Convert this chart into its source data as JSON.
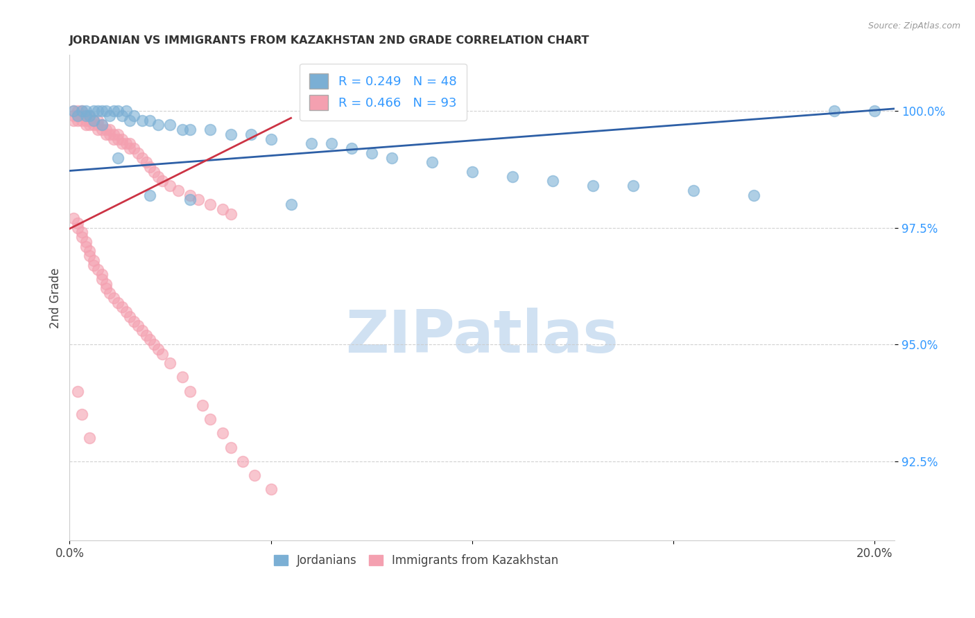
{
  "title": "JORDANIAN VS IMMIGRANTS FROM KAZAKHSTAN 2ND GRADE CORRELATION CHART",
  "source": "Source: ZipAtlas.com",
  "ylabel": "2nd Grade",
  "xlim": [
    0.0,
    0.205
  ],
  "ylim": [
    0.908,
    1.012
  ],
  "yticks": [
    0.925,
    0.95,
    0.975,
    1.0
  ],
  "yticklabels": [
    "92.5%",
    "95.0%",
    "97.5%",
    "100.0%"
  ],
  "xtick_positions": [
    0.0,
    0.05,
    0.1,
    0.15,
    0.2
  ],
  "xticklabels": [
    "0.0%",
    "",
    "",
    "",
    "20.0%"
  ],
  "legend_r_blue": "R = 0.249",
  "legend_n_blue": "N = 48",
  "legend_r_pink": "R = 0.466",
  "legend_n_pink": "N = 93",
  "blue_color": "#7bafd4",
  "pink_color": "#f4a0b0",
  "blue_line_color": "#2d5fa6",
  "pink_line_color": "#cc3344",
  "watermark_color": "#c8dcf0",
  "blue_trend_x0": 0.0,
  "blue_trend_y0": 0.9872,
  "blue_trend_x1": 0.205,
  "blue_trend_y1": 1.0005,
  "pink_trend_x0": 0.0,
  "pink_trend_y0": 0.9748,
  "pink_trend_x1": 0.055,
  "pink_trend_y1": 0.9985,
  "blue_dots_x": [
    0.001,
    0.002,
    0.003,
    0.004,
    0.005,
    0.006,
    0.007,
    0.008,
    0.009,
    0.01,
    0.011,
    0.012,
    0.013,
    0.014,
    0.015,
    0.016,
    0.018,
    0.02,
    0.022,
    0.025,
    0.028,
    0.03,
    0.035,
    0.04,
    0.045,
    0.05,
    0.06,
    0.065,
    0.07,
    0.075,
    0.08,
    0.09,
    0.1,
    0.11,
    0.12,
    0.13,
    0.14,
    0.155,
    0.17,
    0.19,
    0.004,
    0.006,
    0.008,
    0.012,
    0.02,
    0.03,
    0.055,
    0.2
  ],
  "blue_dots_y": [
    1.0,
    0.999,
    1.0,
    1.0,
    0.999,
    1.0,
    1.0,
    1.0,
    1.0,
    0.999,
    1.0,
    1.0,
    0.999,
    1.0,
    0.998,
    0.999,
    0.998,
    0.998,
    0.997,
    0.997,
    0.996,
    0.996,
    0.996,
    0.995,
    0.995,
    0.994,
    0.993,
    0.993,
    0.992,
    0.991,
    0.99,
    0.989,
    0.987,
    0.986,
    0.985,
    0.984,
    0.984,
    0.983,
    0.982,
    1.0,
    0.999,
    0.998,
    0.997,
    0.99,
    0.982,
    0.981,
    0.98,
    1.0
  ],
  "pink_dots_x": [
    0.001,
    0.001,
    0.001,
    0.002,
    0.002,
    0.002,
    0.003,
    0.003,
    0.003,
    0.004,
    0.004,
    0.004,
    0.005,
    0.005,
    0.005,
    0.006,
    0.006,
    0.007,
    0.007,
    0.007,
    0.008,
    0.008,
    0.009,
    0.009,
    0.01,
    0.01,
    0.011,
    0.011,
    0.012,
    0.012,
    0.013,
    0.013,
    0.014,
    0.015,
    0.015,
    0.016,
    0.017,
    0.018,
    0.019,
    0.02,
    0.021,
    0.022,
    0.023,
    0.025,
    0.027,
    0.03,
    0.032,
    0.035,
    0.038,
    0.04,
    0.001,
    0.002,
    0.002,
    0.003,
    0.003,
    0.004,
    0.004,
    0.005,
    0.005,
    0.006,
    0.006,
    0.007,
    0.008,
    0.008,
    0.009,
    0.009,
    0.01,
    0.011,
    0.012,
    0.013,
    0.014,
    0.015,
    0.016,
    0.017,
    0.018,
    0.019,
    0.02,
    0.021,
    0.022,
    0.023,
    0.025,
    0.028,
    0.03,
    0.033,
    0.035,
    0.038,
    0.04,
    0.043,
    0.046,
    0.05,
    0.002,
    0.003,
    0.005
  ],
  "pink_dots_y": [
    1.0,
    0.999,
    0.998,
    1.0,
    0.999,
    0.998,
    1.0,
    0.999,
    0.998,
    0.999,
    0.998,
    0.997,
    0.999,
    0.998,
    0.997,
    0.998,
    0.997,
    0.998,
    0.997,
    0.996,
    0.997,
    0.996,
    0.996,
    0.995,
    0.996,
    0.995,
    0.995,
    0.994,
    0.995,
    0.994,
    0.994,
    0.993,
    0.993,
    0.993,
    0.992,
    0.992,
    0.991,
    0.99,
    0.989,
    0.988,
    0.987,
    0.986,
    0.985,
    0.984,
    0.983,
    0.982,
    0.981,
    0.98,
    0.979,
    0.978,
    0.977,
    0.976,
    0.975,
    0.974,
    0.973,
    0.972,
    0.971,
    0.97,
    0.969,
    0.968,
    0.967,
    0.966,
    0.965,
    0.964,
    0.963,
    0.962,
    0.961,
    0.96,
    0.959,
    0.958,
    0.957,
    0.956,
    0.955,
    0.954,
    0.953,
    0.952,
    0.951,
    0.95,
    0.949,
    0.948,
    0.946,
    0.943,
    0.94,
    0.937,
    0.934,
    0.931,
    0.928,
    0.925,
    0.922,
    0.919,
    0.94,
    0.935,
    0.93
  ]
}
